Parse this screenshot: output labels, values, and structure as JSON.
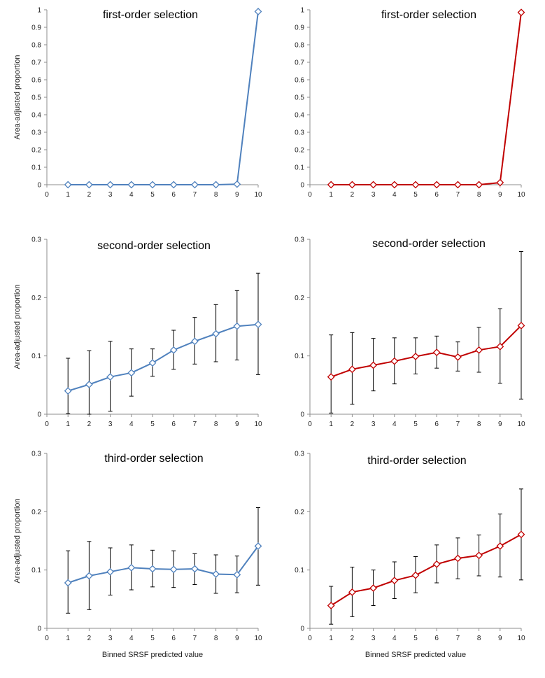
{
  "colors": {
    "blue": "#4f81bd",
    "red": "#c00000",
    "axis": "#8c8c8c",
    "errorbar": "#000000"
  },
  "chart_data": [
    {
      "type": "line",
      "marker": "diamond",
      "color": "#4f81bd",
      "title": "first-order selection",
      "ylabel": "Area-adjusted proportion",
      "xlabel": "",
      "xlim": [
        0,
        10
      ],
      "ylim": [
        0,
        1
      ],
      "xticks": [
        "0",
        "1",
        "2",
        "3",
        "4",
        "5",
        "6",
        "7",
        "8",
        "9",
        "10"
      ],
      "yticks": [
        "0",
        "0.1",
        "0.2",
        "0.3",
        "0.4",
        "0.5",
        "0.6",
        "0.7",
        "0.8",
        "0.9",
        "1"
      ],
      "x": [
        1,
        2,
        3,
        4,
        5,
        6,
        7,
        8,
        9,
        10
      ],
      "values": [
        0,
        0,
        0,
        0,
        0,
        0,
        0,
        0,
        0.003,
        0.99
      ],
      "err_low": null,
      "err_high": null
    },
    {
      "type": "line",
      "marker": "diamond",
      "color": "#c00000",
      "title": "first-order selection",
      "ylabel": "",
      "xlabel": "",
      "xlim": [
        0,
        10
      ],
      "ylim": [
        0,
        1
      ],
      "xticks": [
        "0",
        "1",
        "2",
        "3",
        "4",
        "5",
        "6",
        "7",
        "8",
        "9",
        "10"
      ],
      "yticks": [
        "0",
        "0.1",
        "0.2",
        "0.3",
        "0.4",
        "0.5",
        "0.6",
        "0.7",
        "0.8",
        "0.9",
        "1"
      ],
      "x": [
        1,
        2,
        3,
        4,
        5,
        6,
        7,
        8,
        9,
        10
      ],
      "values": [
        0,
        0,
        0,
        0,
        0,
        0,
        0,
        0,
        0.012,
        0.985
      ],
      "err_low": null,
      "err_high": null
    },
    {
      "type": "line",
      "marker": "diamond",
      "color": "#4f81bd",
      "title": "second-order selection",
      "ylabel": "Area-adjusted proportion",
      "xlabel": "",
      "xlim": [
        0,
        10
      ],
      "ylim": [
        0,
        0.3
      ],
      "xticks": [
        "0",
        "1",
        "2",
        "3",
        "4",
        "5",
        "6",
        "7",
        "8",
        "9",
        "10"
      ],
      "yticks": [
        "0",
        "0.1",
        "0.2",
        "0.3"
      ],
      "x": [
        1,
        2,
        3,
        4,
        5,
        6,
        7,
        8,
        9,
        10
      ],
      "values": [
        0.04,
        0.051,
        0.064,
        0.071,
        0.088,
        0.11,
        0.125,
        0.138,
        0.151,
        0.154
      ],
      "err_low": [
        0.001,
        0.0,
        0.005,
        0.031,
        0.065,
        0.077,
        0.086,
        0.09,
        0.093,
        0.068
      ],
      "err_high": [
        0.096,
        0.109,
        0.125,
        0.112,
        0.112,
        0.144,
        0.166,
        0.188,
        0.212,
        0.242
      ]
    },
    {
      "type": "line",
      "marker": "diamond",
      "color": "#c00000",
      "title": "second-order selection",
      "ylabel": "",
      "xlabel": "",
      "xlim": [
        0,
        10
      ],
      "ylim": [
        0,
        0.3
      ],
      "xticks": [
        "0",
        "1",
        "2",
        "3",
        "4",
        "5",
        "6",
        "7",
        "8",
        "9",
        "10"
      ],
      "yticks": [
        "0",
        "0.1",
        "0.2",
        "0.3"
      ],
      "x": [
        1,
        2,
        3,
        4,
        5,
        6,
        7,
        8,
        9,
        10
      ],
      "values": [
        0.064,
        0.077,
        0.084,
        0.091,
        0.099,
        0.106,
        0.098,
        0.11,
        0.116,
        0.152
      ],
      "err_low": [
        0.002,
        0.017,
        0.04,
        0.052,
        0.069,
        0.079,
        0.074,
        0.072,
        0.053,
        0.026
      ],
      "err_high": [
        0.136,
        0.14,
        0.13,
        0.131,
        0.131,
        0.134,
        0.124,
        0.149,
        0.181,
        0.279
      ]
    },
    {
      "type": "line",
      "marker": "diamond",
      "color": "#4f81bd",
      "title": "third-order selection",
      "ylabel": "Area-adjusted proportion",
      "xlabel": "Binned SRSF predicted value",
      "xlim": [
        0,
        10
      ],
      "ylim": [
        0,
        0.3
      ],
      "xticks": [
        "0",
        "1",
        "2",
        "3",
        "4",
        "5",
        "6",
        "7",
        "8",
        "9",
        "10"
      ],
      "yticks": [
        "0",
        "0.1",
        "0.2",
        "0.3"
      ],
      "x": [
        1,
        2,
        3,
        4,
        5,
        6,
        7,
        8,
        9,
        10
      ],
      "values": [
        0.078,
        0.09,
        0.097,
        0.104,
        0.102,
        0.101,
        0.102,
        0.093,
        0.092,
        0.141
      ],
      "err_low": [
        0.026,
        0.032,
        0.057,
        0.066,
        0.071,
        0.07,
        0.075,
        0.06,
        0.061,
        0.074
      ],
      "err_high": [
        0.133,
        0.149,
        0.138,
        0.143,
        0.134,
        0.133,
        0.128,
        0.126,
        0.124,
        0.207
      ]
    },
    {
      "type": "line",
      "marker": "diamond",
      "color": "#c00000",
      "title": "third-order selection",
      "ylabel": "",
      "xlabel": "Binned SRSF predicted value",
      "xlim": [
        0,
        10
      ],
      "ylim": [
        0,
        0.3
      ],
      "xticks": [
        "0",
        "1",
        "2",
        "3",
        "4",
        "5",
        "6",
        "7",
        "8",
        "9",
        "10"
      ],
      "yticks": [
        "0",
        "0.1",
        "0.2",
        "0.3"
      ],
      "x": [
        1,
        2,
        3,
        4,
        5,
        6,
        7,
        8,
        9,
        10
      ],
      "values": [
        0.039,
        0.062,
        0.069,
        0.082,
        0.091,
        0.11,
        0.12,
        0.125,
        0.141,
        0.161
      ],
      "err_low": [
        0.007,
        0.02,
        0.039,
        0.051,
        0.061,
        0.078,
        0.085,
        0.09,
        0.088,
        0.083
      ],
      "err_high": [
        0.072,
        0.105,
        0.1,
        0.114,
        0.123,
        0.143,
        0.155,
        0.16,
        0.196,
        0.239
      ]
    }
  ]
}
